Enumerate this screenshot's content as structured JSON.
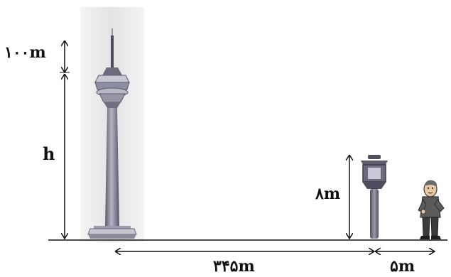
{
  "labels": {
    "top_segment": "۱۰۰m",
    "tower_height": "h",
    "lamp_height": "۸m",
    "ground_distance_long": "۳۴۵m",
    "ground_distance_short": "۵m"
  },
  "illustrations": {
    "tower": "milad-tower-icon",
    "lamp": "street-lamp-icon",
    "person": "person-icon"
  },
  "colors": {
    "ink": "#111111",
    "tower_bg": "#ececec",
    "tower_body": "#7a7a8a",
    "lamp_body": "#6b6b7a",
    "person_jacket": "#555555",
    "person_pants": "#333333"
  }
}
